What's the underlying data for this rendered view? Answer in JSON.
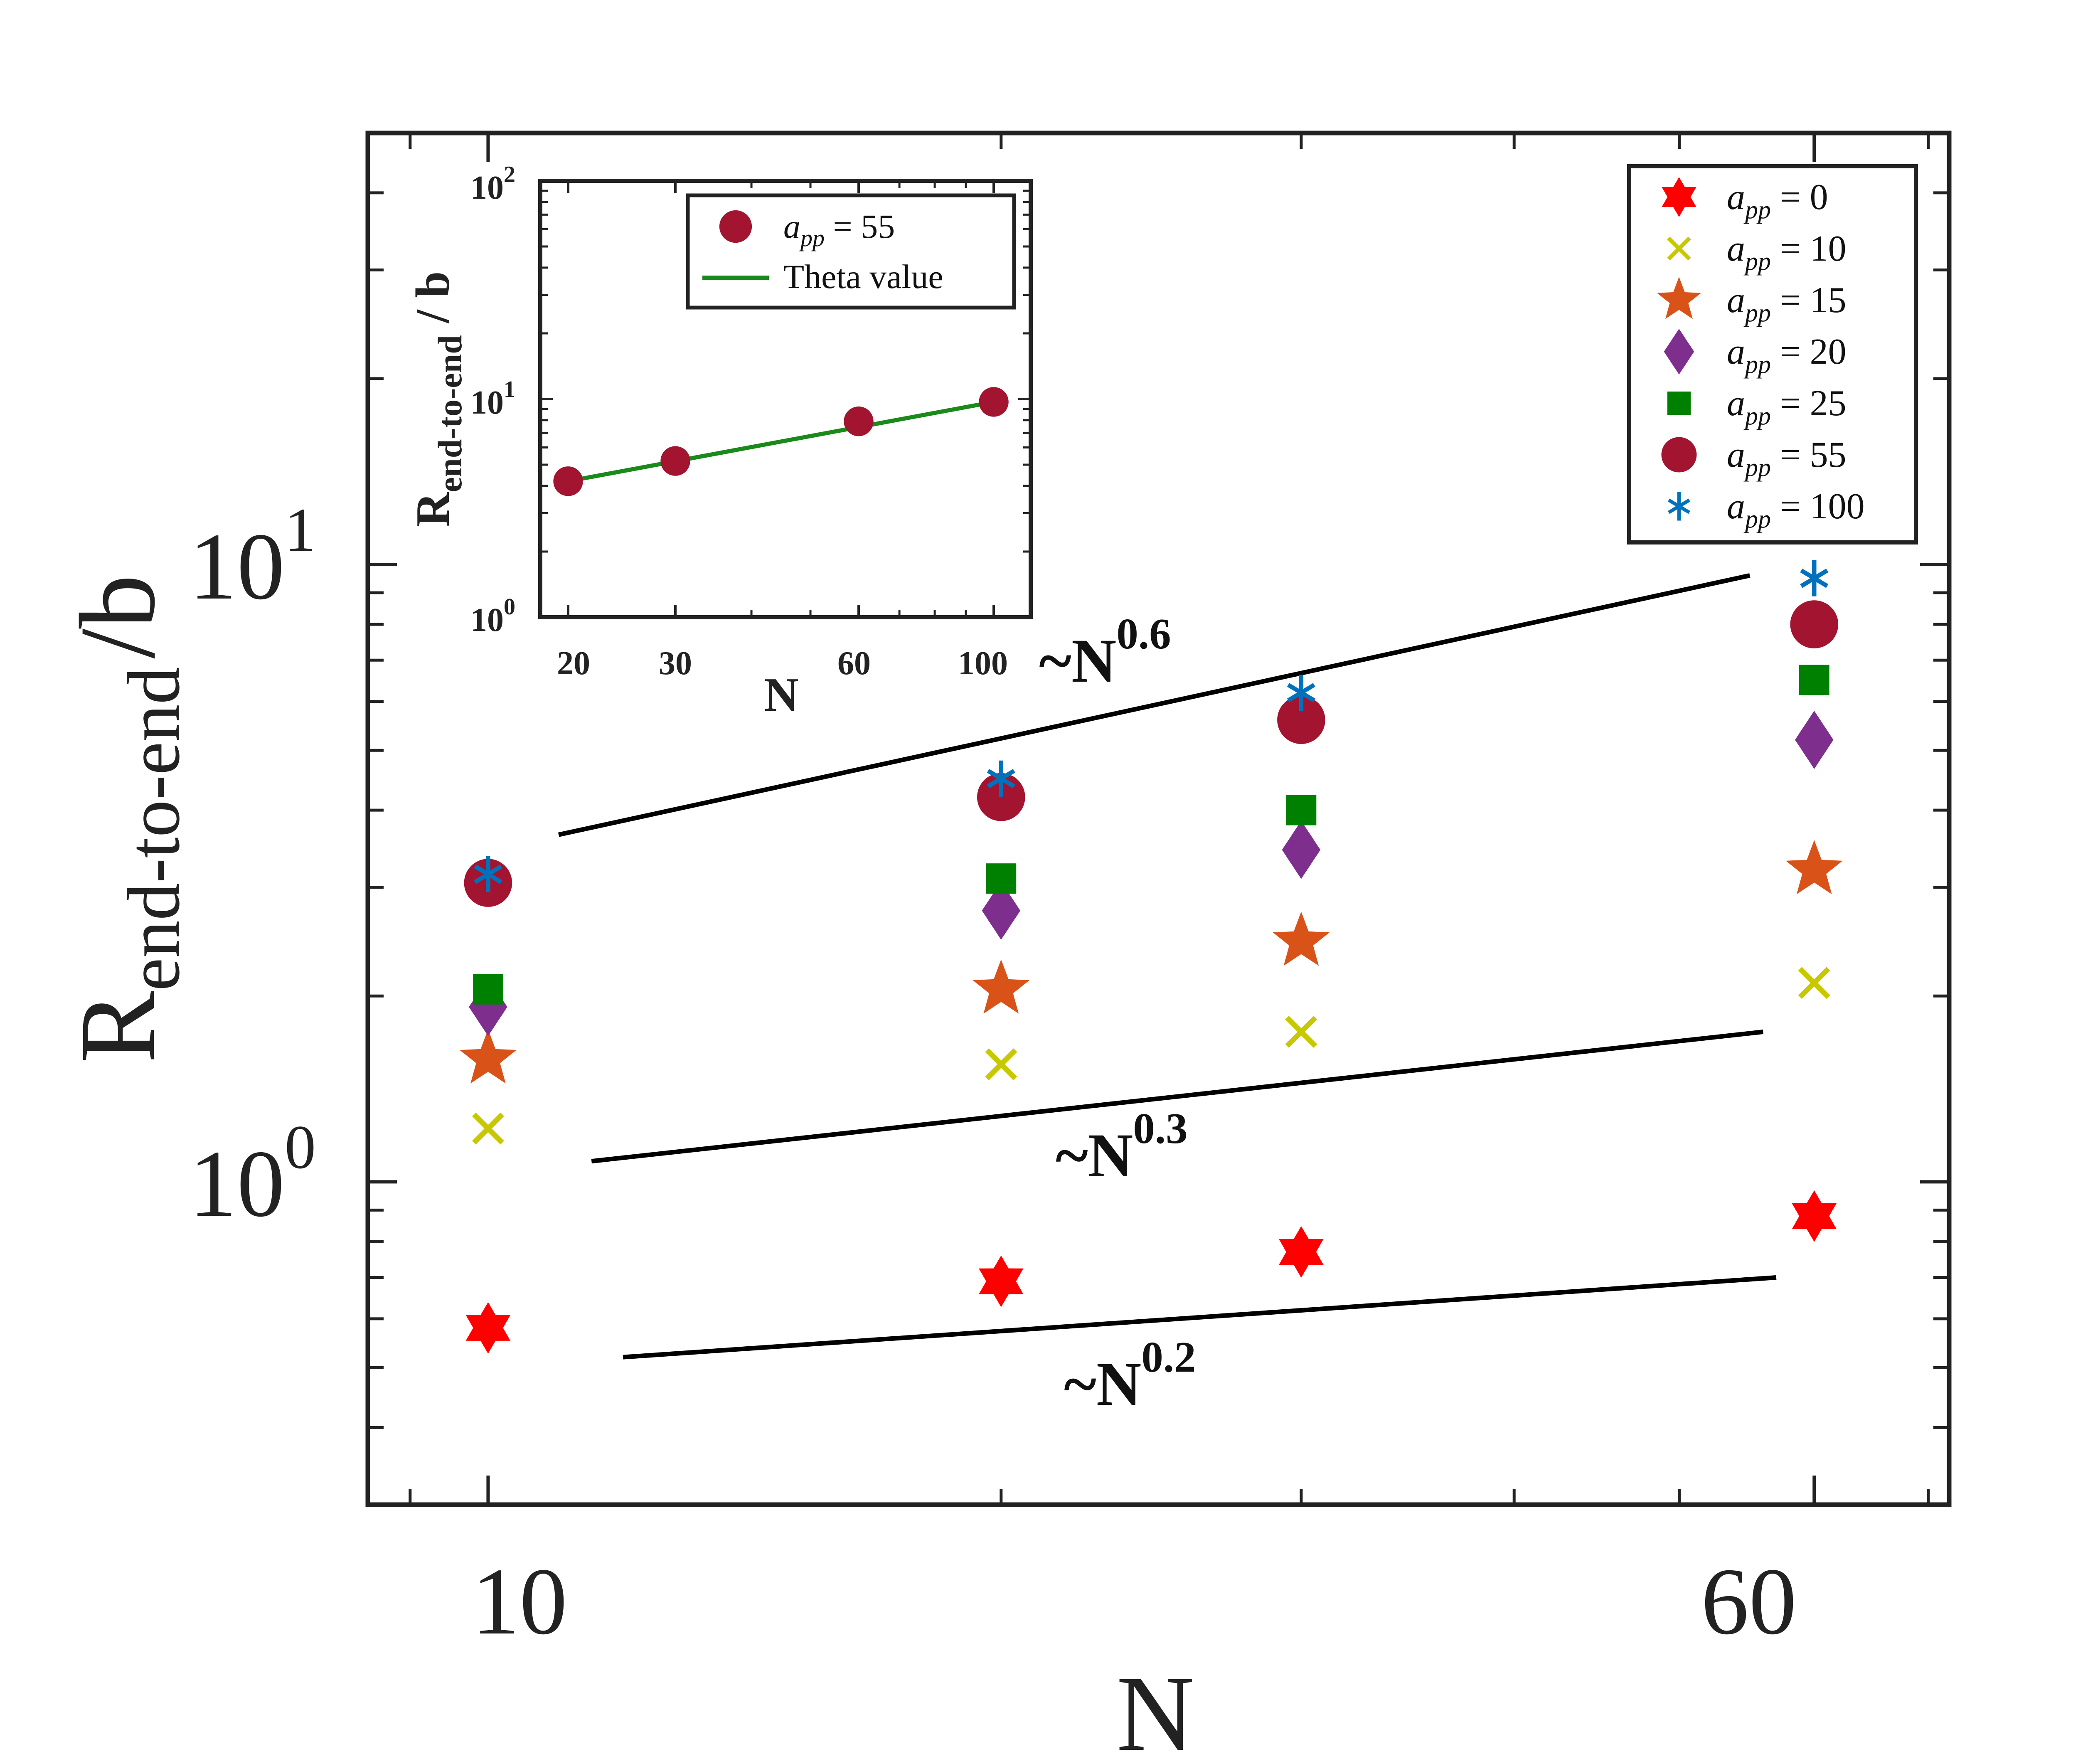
{
  "chart_data": [
    {
      "type": "scatter",
      "xscale": "log",
      "yscale": "log",
      "xlim": [
        8.5,
        72
      ],
      "ylim": [
        0.3,
        50
      ],
      "xticks": [
        10,
        60
      ],
      "xtick_labels": [
        "10",
        "60"
      ],
      "yticks": [
        1,
        10
      ],
      "ytick_labels": [
        {
          "base": "10",
          "exp": "0"
        },
        {
          "base": "10",
          "exp": "1"
        }
      ],
      "xlabel": "N",
      "ylabel": {
        "main": "R",
        "sub": "end-to-end",
        "suffix": "/b"
      },
      "legend_position": "top-right",
      "series": [
        {
          "name": {
            "sym": "a",
            "sub": "pp",
            "rest": " = 0"
          },
          "marker": "hexagram",
          "color": "#ff0000",
          "x": [
            10,
            20,
            30,
            60
          ],
          "y": [
            0.58,
            0.69,
            0.77,
            0.88
          ]
        },
        {
          "name": {
            "sym": "a",
            "sub": "pp",
            "rest": " = 10"
          },
          "marker": "x",
          "color": "#c8c800",
          "x": [
            10,
            20,
            30,
            60
          ],
          "y": [
            1.22,
            1.55,
            1.75,
            2.1
          ]
        },
        {
          "name": {
            "sym": "a",
            "sub": "pp",
            "rest": " = 15"
          },
          "marker": "pentagram",
          "color": "#d95319",
          "x": [
            10,
            20,
            30,
            60
          ],
          "y": [
            1.58,
            2.05,
            2.45,
            3.2
          ]
        },
        {
          "name": {
            "sym": "a",
            "sub": "pp",
            "rest": " = 20"
          },
          "marker": "diamond",
          "color": "#7e2f8e",
          "x": [
            10,
            20,
            30,
            60
          ],
          "y": [
            1.92,
            2.75,
            3.45,
            5.2
          ]
        },
        {
          "name": {
            "sym": "a",
            "sub": "pp",
            "rest": " = 25"
          },
          "marker": "square",
          "color": "#008000",
          "x": [
            10,
            20,
            30,
            60
          ],
          "y": [
            2.05,
            3.1,
            4.0,
            6.5
          ]
        },
        {
          "name": {
            "sym": "a",
            "sub": "pp",
            "rest": " = 55"
          },
          "marker": "circle",
          "color": "#a2142f",
          "x": [
            10,
            20,
            30,
            60
          ],
          "y": [
            3.05,
            4.2,
            5.6,
            8.0
          ]
        },
        {
          "name": {
            "sym": "a",
            "sub": "pp",
            "rest": " = 100"
          },
          "marker": "asterisk",
          "color": "#0072bd",
          "x": [
            10,
            20,
            30,
            60
          ],
          "y": [
            3.15,
            4.5,
            6.2,
            9.5
          ]
        }
      ],
      "reference_lines": [
        {
          "label": {
            "base": "~N",
            "exp": "0.6"
          },
          "x": [
            11,
            55
          ],
          "y": [
            3.65,
            9.6
          ]
        },
        {
          "label": {
            "base": "~N",
            "exp": "0.3"
          },
          "x": [
            11.5,
            56
          ],
          "y": [
            1.08,
            1.75
          ]
        },
        {
          "label": {
            "base": "~N",
            "exp": "0.2"
          },
          "x": [
            12,
            57
          ],
          "y": [
            0.52,
            0.7
          ]
        }
      ]
    },
    {
      "type": "line",
      "inset": true,
      "xscale": "log",
      "yscale": "log",
      "xlim": [
        18,
        115
      ],
      "ylim": [
        1,
        100
      ],
      "xticks": [
        20,
        30,
        60,
        100
      ],
      "xtick_labels": [
        "20",
        "30",
        "60",
        "100"
      ],
      "yticks": [
        1,
        10,
        100
      ],
      "ytick_labels": [
        {
          "base": "10",
          "exp": "0"
        },
        {
          "base": "10",
          "exp": "1"
        },
        {
          "base": "10",
          "exp": "2"
        }
      ],
      "xlabel": "N",
      "ylabel": {
        "main": "R",
        "sub": "end-to-end",
        "suffix": " / b"
      },
      "legend_position": "top-right",
      "series": [
        {
          "name": {
            "sym": "a",
            "sub": "pp",
            "rest": " = 55"
          },
          "marker": "circle",
          "color": "#a2142f",
          "x": [
            20,
            30,
            60,
            100
          ],
          "y": [
            4.2,
            5.2,
            7.9,
            9.7
          ]
        },
        {
          "name": "Theta value",
          "marker": "line",
          "color": "#1a8a1a",
          "x": [
            20,
            100
          ],
          "y": [
            4.2,
            9.7
          ]
        }
      ]
    }
  ]
}
